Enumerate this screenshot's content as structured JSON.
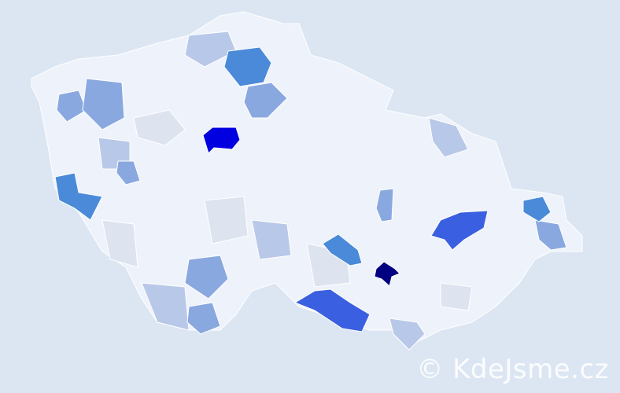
{
  "map": {
    "colors": {
      "background": "#dce6f3",
      "base": "#eef2fa",
      "border": "#ffffff",
      "level_1": "#dde4f0",
      "level_2": "#b8c8e8",
      "level_3": "#8aa8e0",
      "level_4": "#4a8ad8",
      "level_5": "#3a5fe0",
      "level_6": "#0000e0",
      "level_7": "#000080"
    }
  },
  "watermark": "© KdeJsme.cz"
}
